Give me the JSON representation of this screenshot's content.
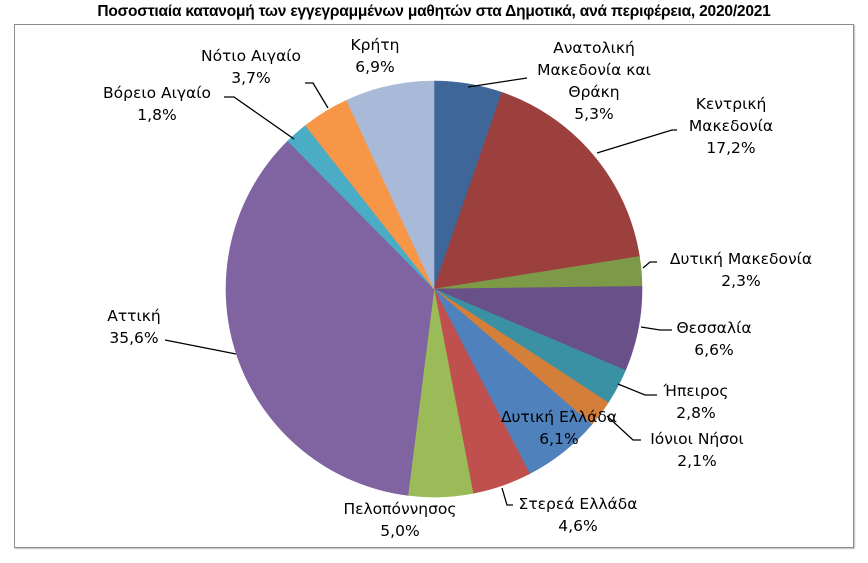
{
  "chart_data": {
    "type": "pie",
    "title": "Ποσοστιαία κατανομή των εγγεγραμμένων μαθητών στα Δημοτικά, ανά περιφέρεια, 2020/2021",
    "start_angle_deg": 0,
    "direction": "clockwise",
    "legend": "none (data labels with leader lines)",
    "slices": [
      {
        "label": "Ανατολική Μακεδονία και Θράκη",
        "value": 5.3,
        "display": "5,3%",
        "color": "#3F6698"
      },
      {
        "label": "Κεντρική Μακεδονία",
        "value": 17.2,
        "display": "17,2%",
        "color": "#9B403D"
      },
      {
        "label": "Δυτική Μακεδονία",
        "value": 2.3,
        "display": "2,3%",
        "color": "#7C9A48"
      },
      {
        "label": "Θεσσαλία",
        "value": 6.6,
        "display": "6,6%",
        "color": "#6A5089"
      },
      {
        "label": "Ήπειρος",
        "value": 2.8,
        "display": "2,8%",
        "color": "#3A91A4"
      },
      {
        "label": "Ιόνιοι Νήσοι",
        "value": 2.1,
        "display": "2,1%",
        "color": "#D37F3A"
      },
      {
        "label": "Δυτική Ελλάδα",
        "value": 6.1,
        "display": "6,1%",
        "color": "#4F81BD"
      },
      {
        "label": "Στερεά Ελλάδα",
        "value": 4.6,
        "display": "4,6%",
        "color": "#C0504D"
      },
      {
        "label": "Πελοπόννησος",
        "value": 5.0,
        "display": "5,0%",
        "color": "#9BBB59"
      },
      {
        "label": "Αττική",
        "value": 35.6,
        "display": "35,6%",
        "color": "#8064A2"
      },
      {
        "label": "Βόρειο Αιγαίο",
        "value": 1.8,
        "display": "1,8%",
        "color": "#4BACC6"
      },
      {
        "label": "Νότιο Αιγαίο",
        "value": 3.7,
        "display": "3,7%",
        "color": "#F79646"
      },
      {
        "label": "Κρήτη",
        "value": 6.9,
        "display": "6,9%",
        "color": "#A9B9D8"
      }
    ]
  },
  "labels": {
    "amth_l1": "Ανατολική",
    "amth_l2": "Μακεδονία και",
    "amth_l3": "Θράκη",
    "amth_v": "5,3%",
    "km_l1": "Κεντρική",
    "km_l2": "Μακεδονία",
    "km_v": "17,2%",
    "dm_l1": "Δυτική Μακεδονία",
    "dm_v": "2,3%",
    "thes_l1": "Θεσσαλία",
    "thes_v": "6,6%",
    "ipi_l1": "Ήπειρος",
    "ipi_v": "2,8%",
    "ion_l1": "Ιόνιοι Νήσοι",
    "ion_v": "2,1%",
    "de_l1": "Δυτική Ελλάδα",
    "de_v": "6,1%",
    "ste_l1": "Στερεά Ελλάδα",
    "ste_v": "4,6%",
    "pel_l1": "Πελοπόννησος",
    "pel_v": "5,0%",
    "att_l1": "Αττική",
    "att_v": "35,6%",
    "va_l1": "Βόρειο Αιγαίο",
    "va_v": "1,8%",
    "na_l1": "Νότιο Αιγαίο",
    "na_v": "3,7%",
    "kr_l1": "Κρήτη",
    "kr_v": "6,9%"
  }
}
